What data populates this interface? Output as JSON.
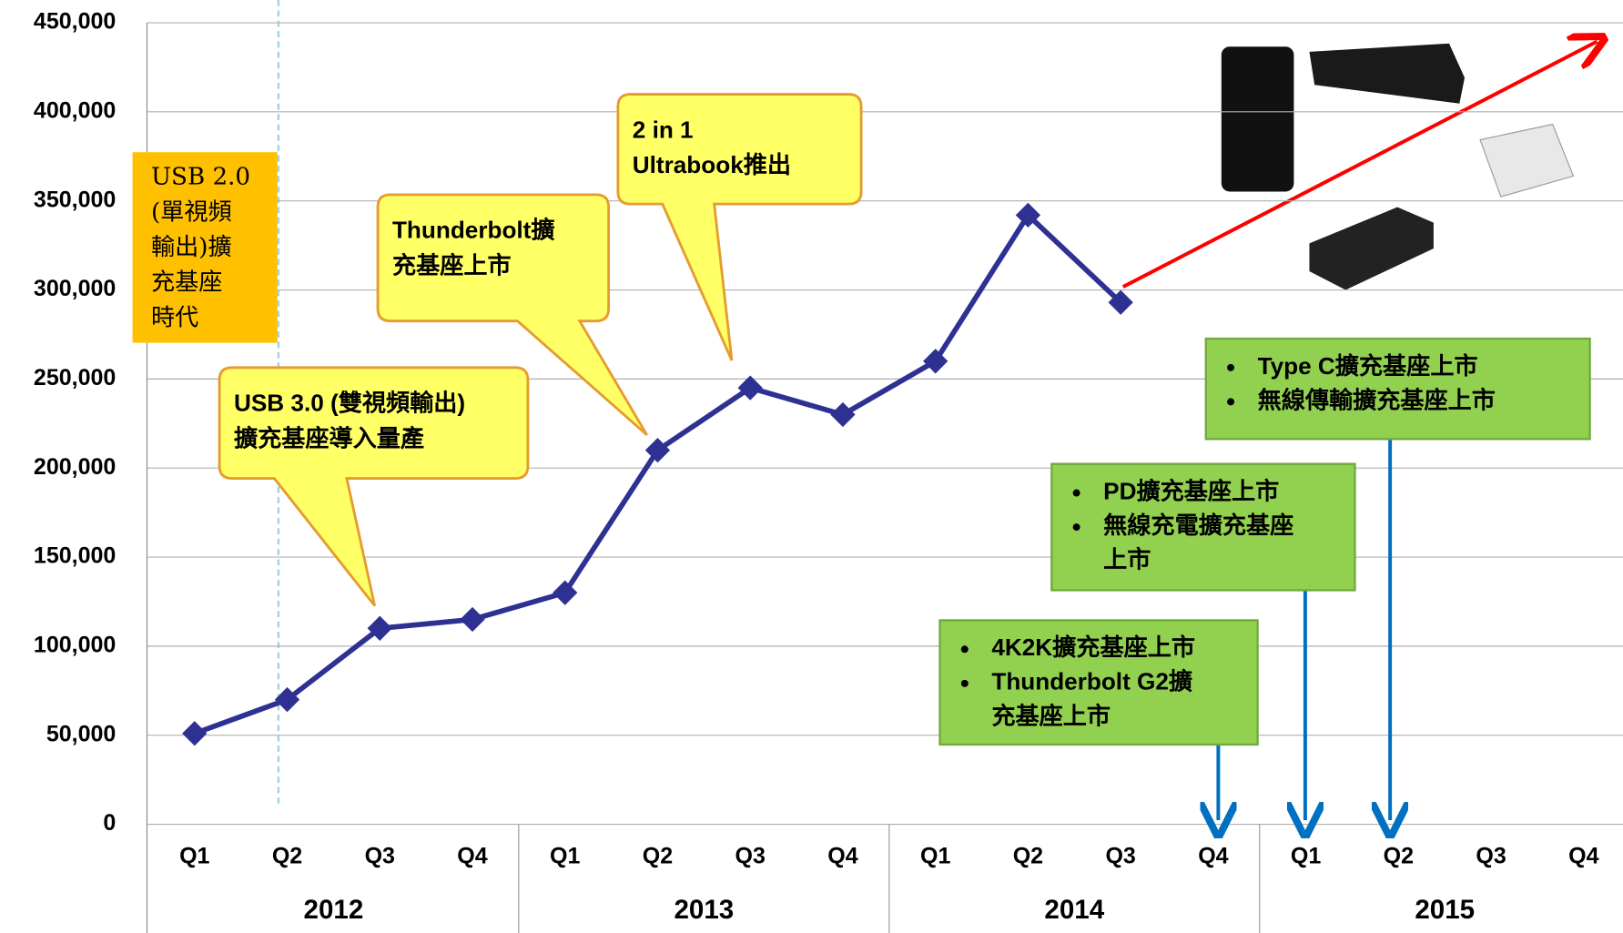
{
  "chart_data": {
    "type": "line",
    "categories": [
      "Q1",
      "Q2",
      "Q3",
      "Q4",
      "Q1",
      "Q2",
      "Q3",
      "Q4",
      "Q1",
      "Q2",
      "Q3",
      "Q4",
      "Q1",
      "Q2",
      "Q3",
      "Q4"
    ],
    "year_groups": [
      "2012",
      "2013",
      "2014",
      "2015"
    ],
    "values": [
      51000,
      70000,
      110000,
      115000,
      130000,
      210000,
      245000,
      230000,
      260000,
      342000,
      293000,
      null,
      null,
      null,
      null,
      null
    ],
    "color": "#2e3192",
    "ylim": [
      0,
      450000
    ],
    "yticks": [
      0,
      {
        "value": 50000,
        "label": "50,000"
      },
      {
        "value": 100000,
        "label": "100,000"
      },
      {
        "value": 150000,
        "label": "150,000"
      },
      {
        "value": 200000,
        "label": "200,000"
      },
      {
        "value": 250000,
        "label": "250,000"
      },
      {
        "value": 300000,
        "label": "300,000"
      },
      {
        "value": 350000,
        "label": "350,000"
      },
      {
        "value": 400000,
        "label": "400,000"
      },
      {
        "value": 450000,
        "label": "450,000"
      }
    ],
    "grid": true,
    "annotations": [
      {
        "style": "era",
        "lines": [
          "USB 2.0",
          "(單視頻",
          "輸出)擴",
          "充基座",
          "時代"
        ]
      },
      {
        "style": "callout",
        "lines": [
          "USB 3.0 (雙視頻輸出)",
          "擴充基座導入量產"
        ]
      },
      {
        "style": "callout",
        "lines": [
          "Thunderbolt擴",
          "充基座上市"
        ]
      },
      {
        "style": "callout",
        "lines": [
          "2 in 1",
          "Ultrabook推出"
        ]
      },
      {
        "style": "bullets",
        "items": [
          [
            "4K2K擴充基座上市"
          ],
          [
            "Thunderbolt G2擴",
            "充基座上市"
          ]
        ]
      },
      {
        "style": "bullets",
        "items": [
          [
            "PD擴充基座上市"
          ],
          [
            "無線充電擴充基座",
            "上市"
          ]
        ]
      },
      {
        "style": "bullets",
        "items": [
          [
            "Type C擴充基座上市"
          ],
          [
            "無線傳輸擴充基座上市"
          ]
        ]
      }
    ]
  }
}
